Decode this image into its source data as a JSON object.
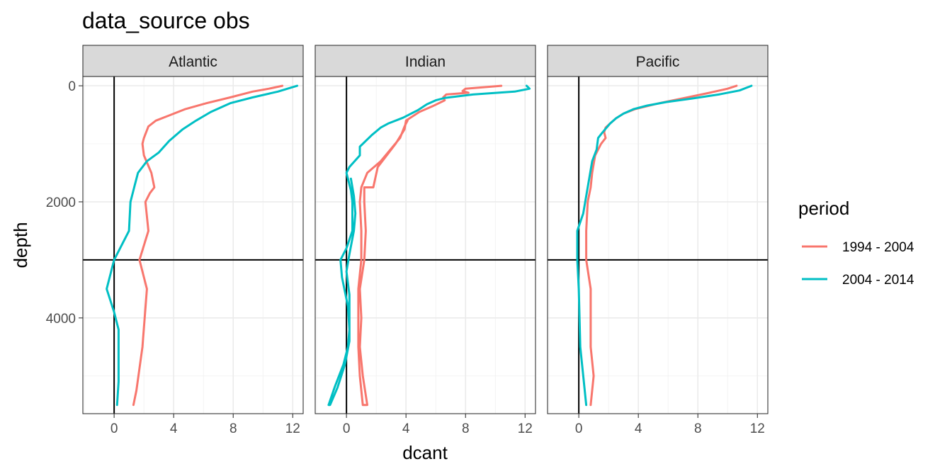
{
  "chart_data": {
    "type": "line",
    "title": "data_source obs",
    "xlabel": "dcant",
    "ylabel": "depth",
    "xlim": [
      -2.1,
      12.7
    ],
    "ylim": [
      -160,
      5650
    ],
    "y_reversed": true,
    "x_ticks": [
      0,
      4,
      8,
      12
    ],
    "y_ticks": [
      0,
      2000,
      4000
    ],
    "grid": true,
    "reference_lines": {
      "vertical_x": 0,
      "horizontal_y": 3000
    },
    "legend": {
      "title": "period",
      "position": "right",
      "entries": [
        "1994 - 2004",
        "2004 - 2014"
      ]
    },
    "series_colors": {
      "1994 - 2004": "#F8766D",
      "2004 - 2014": "#00BFC4"
    },
    "panels": [
      {
        "label": "Atlantic",
        "series": [
          {
            "name": "1994 - 2004",
            "points": [
              [
                11.3,
                0
              ],
              [
                10.4,
                50
              ],
              [
                9.3,
                100
              ],
              [
                7.8,
                200
              ],
              [
                6.2,
                300
              ],
              [
                4.8,
                400
              ],
              [
                3.8,
                500
              ],
              [
                2.8,
                600
              ],
              [
                2.3,
                700
              ],
              [
                2.0,
                900
              ],
              [
                1.9,
                1000
              ],
              [
                2.0,
                1200
              ],
              [
                2.5,
                1500
              ],
              [
                2.7,
                1750
              ],
              [
                2.4,
                1850
              ],
              [
                2.1,
                2000
              ],
              [
                2.3,
                2500
              ],
              [
                1.7,
                3000
              ],
              [
                2.2,
                3500
              ],
              [
                1.9,
                4500
              ],
              [
                1.5,
                5250
              ],
              [
                1.3,
                5500
              ]
            ]
          },
          {
            "name": "2004 - 2014",
            "points": [
              [
                12.3,
                0
              ],
              [
                11.0,
                100
              ],
              [
                9.3,
                200
              ],
              [
                7.8,
                300
              ],
              [
                6.5,
                450
              ],
              [
                5.5,
                600
              ],
              [
                4.6,
                750
              ],
              [
                3.7,
                950
              ],
              [
                3.0,
                1150
              ],
              [
                2.2,
                1300
              ],
              [
                1.6,
                1500
              ],
              [
                1.4,
                1700
              ],
              [
                1.1,
                2000
              ],
              [
                1.0,
                2500
              ],
              [
                0.0,
                3000
              ],
              [
                -0.5,
                3500
              ],
              [
                0.0,
                3900
              ],
              [
                0.3,
                4200
              ],
              [
                0.3,
                4500
              ],
              [
                0.3,
                5100
              ],
              [
                0.2,
                5500
              ]
            ]
          }
        ]
      },
      {
        "label": "Indian",
        "series": [
          {
            "name": "1994 - 2004",
            "points": [
              [
                10.4,
                0
              ],
              [
                8.0,
                50
              ],
              [
                7.8,
                90
              ],
              [
                8.2,
                120
              ],
              [
                6.7,
                150
              ],
              [
                6.5,
                200
              ],
              [
                6.6,
                250
              ],
              [
                5.8,
                350
              ],
              [
                4.9,
                450
              ],
              [
                4.0,
                600
              ],
              [
                3.9,
                750
              ],
              [
                3.3,
                1000
              ],
              [
                2.7,
                1200
              ],
              [
                2.1,
                1400
              ],
              [
                1.8,
                1750
              ],
              [
                1.2,
                1750
              ],
              [
                1.2,
                2000
              ],
              [
                1.3,
                2500
              ],
              [
                1.2,
                3000
              ],
              [
                0.9,
                3500
              ],
              [
                1.0,
                4000
              ],
              [
                0.9,
                4500
              ],
              [
                1.1,
                5000
              ],
              [
                1.4,
                5500
              ],
              [
                1.1,
                5500
              ],
              [
                0.9,
                5000
              ],
              [
                0.8,
                4500
              ],
              [
                0.8,
                4000
              ],
              [
                0.8,
                3500
              ],
              [
                1.0,
                3000
              ],
              [
                1.0,
                2500
              ],
              [
                0.9,
                2000
              ],
              [
                1.0,
                1750
              ],
              [
                1.4,
                1500
              ],
              [
                2.3,
                1300
              ],
              [
                3.6,
                900
              ],
              [
                3.9,
                700
              ],
              [
                4.1,
                600
              ]
            ]
          },
          {
            "name": "2004 - 2014",
            "points": [
              [
                12.1,
                0
              ],
              [
                12.3,
                50
              ],
              [
                11.3,
                100
              ],
              [
                8.5,
                150
              ],
              [
                6.6,
                210
              ],
              [
                6.0,
                250
              ],
              [
                5.4,
                320
              ],
              [
                4.8,
                420
              ],
              [
                3.8,
                550
              ],
              [
                2.8,
                650
              ],
              [
                2.3,
                720
              ],
              [
                1.7,
                850
              ],
              [
                1.1,
                1000
              ],
              [
                0.9,
                1050
              ],
              [
                0.9,
                1200
              ],
              [
                0.2,
                1400
              ],
              [
                0.0,
                1500
              ],
              [
                0.3,
                1800
              ],
              [
                0.4,
                2000
              ],
              [
                0.4,
                2500
              ],
              [
                0.0,
                2800
              ],
              [
                -0.4,
                3000
              ],
              [
                -0.3,
                3300
              ],
              [
                0.1,
                3800
              ],
              [
                0.2,
                4200
              ],
              [
                0.1,
                4500
              ],
              [
                -0.2,
                4800
              ],
              [
                -0.8,
                5200
              ],
              [
                -1.2,
                5500
              ],
              [
                -1.1,
                5500
              ],
              [
                -0.6,
                5200
              ],
              [
                -0.1,
                4800
              ],
              [
                0.2,
                4400
              ],
              [
                0.2,
                4000
              ],
              [
                0.2,
                3600
              ],
              [
                0.0,
                3200
              ],
              [
                0.2,
                2900
              ],
              [
                0.5,
                2500
              ],
              [
                0.6,
                2200
              ],
              [
                0.5,
                1900
              ],
              [
                0.3,
                1600
              ]
            ]
          }
        ]
      },
      {
        "label": "Pacific",
        "series": [
          {
            "name": "1994 - 2004",
            "points": [
              [
                10.6,
                0
              ],
              [
                10.0,
                50
              ],
              [
                8.8,
                120
              ],
              [
                7.3,
                200
              ],
              [
                5.4,
                300
              ],
              [
                3.8,
                400
              ],
              [
                3.0,
                480
              ],
              [
                2.5,
                560
              ],
              [
                2.1,
                650
              ],
              [
                1.8,
                720
              ],
              [
                1.7,
                800
              ],
              [
                1.8,
                900
              ],
              [
                1.5,
                1000
              ],
              [
                1.1,
                1200
              ],
              [
                0.9,
                1500
              ],
              [
                0.8,
                1750
              ],
              [
                0.6,
                2000
              ],
              [
                0.5,
                2500
              ],
              [
                0.5,
                3000
              ],
              [
                0.8,
                3500
              ],
              [
                0.8,
                4000
              ],
              [
                0.8,
                4500
              ],
              [
                1.0,
                5000
              ],
              [
                0.8,
                5500
              ]
            ]
          },
          {
            "name": "2004 - 2014",
            "points": [
              [
                11.6,
                0
              ],
              [
                10.8,
                80
              ],
              [
                9.4,
                150
              ],
              [
                7.6,
                220
              ],
              [
                5.9,
                280
              ],
              [
                4.6,
                340
              ],
              [
                3.7,
                400
              ],
              [
                3.0,
                480
              ],
              [
                2.5,
                560
              ],
              [
                2.1,
                650
              ],
              [
                1.6,
                800
              ],
              [
                1.3,
                900
              ],
              [
                1.2,
                1100
              ],
              [
                0.9,
                1300
              ],
              [
                0.7,
                1600
              ],
              [
                0.5,
                1900
              ],
              [
                0.3,
                2200
              ],
              [
                -0.1,
                2500
              ],
              [
                -0.1,
                3000
              ],
              [
                0.0,
                3500
              ],
              [
                0.1,
                4500
              ],
              [
                0.3,
                5000
              ],
              [
                0.5,
                5500
              ]
            ]
          }
        ]
      }
    ]
  }
}
